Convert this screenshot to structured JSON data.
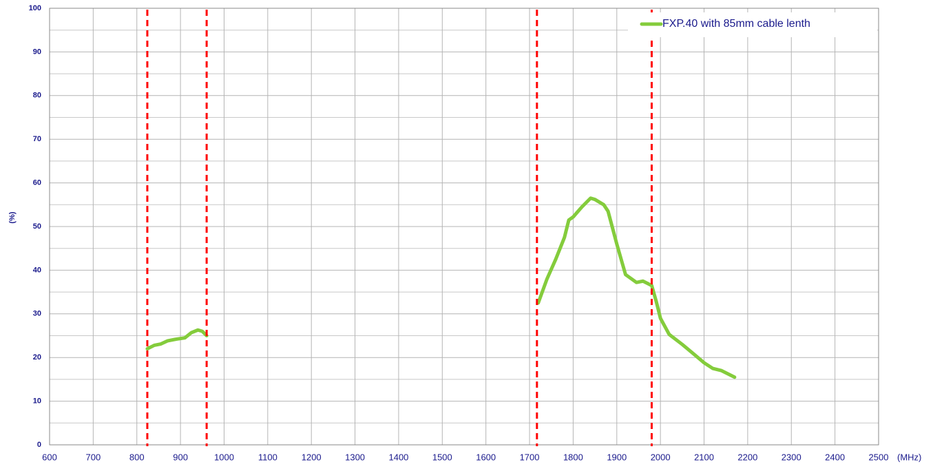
{
  "chart_data": {
    "type": "line",
    "y_label": "(%)",
    "x_unit": "(MHz)",
    "xlim": [
      600,
      2500
    ],
    "xticks": [
      600,
      700,
      800,
      900,
      1000,
      1100,
      1200,
      1300,
      1400,
      1500,
      1600,
      1700,
      1800,
      1900,
      2000,
      2100,
      2200,
      2300,
      2400,
      2500
    ],
    "ylim": [
      0,
      100
    ],
    "yticks": [
      0,
      10,
      20,
      30,
      40,
      50,
      60,
      70,
      80,
      90,
      100
    ],
    "y_minor_grid": [
      5,
      15,
      25,
      35,
      45,
      55,
      65,
      75,
      85,
      95
    ],
    "grid": true,
    "legend": "top-right",
    "markers": {
      "color": "#ff0000",
      "x": [
        824,
        960,
        1717,
        1980
      ]
    },
    "x": [
      824,
      840,
      855,
      870,
      890,
      910,
      925,
      940,
      950,
      960,
      null,
      1720,
      1740,
      1760,
      1780,
      1790,
      1800,
      1820,
      1840,
      1850,
      1870,
      1880,
      1900,
      1920,
      1945,
      1960,
      1980,
      1990,
      2000,
      2020,
      2050,
      2080,
      2100,
      2120,
      2140,
      2170
    ],
    "series": [
      {
        "name": "FXP.40 with 85mm cable lenth",
        "color": "#84cc3c",
        "values": [
          22,
          22.8,
          23.1,
          23.8,
          24.2,
          24.5,
          25.7,
          26.3,
          26,
          25,
          null,
          32.5,
          38,
          42.5,
          47.5,
          51.5,
          52.2,
          54.5,
          56.5,
          56.2,
          55,
          53.5,
          46,
          39,
          37.2,
          37.5,
          36.5,
          33,
          29,
          25.3,
          23,
          20.5,
          18.8,
          17.5,
          17,
          15.5
        ]
      }
    ]
  }
}
